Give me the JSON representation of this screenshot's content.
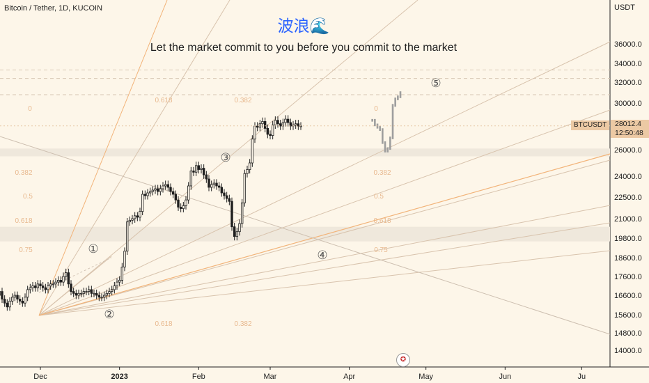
{
  "header": {
    "symbol_title": "Bitcoin / Tether, 1D, KUCOIN",
    "wave_title": "波浪🌊",
    "subtitle": "Let the market commit to you before you commit to the market"
  },
  "price_scale": {
    "currency": "USDT",
    "symbol_tag": "BTCUSDT",
    "last_price": "28012.4",
    "countdown": "12:50:48"
  },
  "colors": {
    "background": "#fdf6e9",
    "candle": "#1e1e1e",
    "projection": "#9e9e9e",
    "fib_text": "#e8b98f",
    "fan_lines": "#d8c3ad",
    "orange_line": "#f2b47a",
    "price_tag": "#ecc9a4",
    "title_blue": "#2962ff"
  },
  "chart_data": {
    "type": "candlestick",
    "symbol": "Bitcoin / Tether",
    "interval": "1D",
    "exchange": "KUCOIN",
    "y_ticks": [
      36000,
      34000,
      32000,
      30000,
      28000,
      26000,
      24000,
      22500,
      21000,
      19800,
      18600,
      17600,
      16600,
      15600,
      14800,
      14000
    ],
    "y_tick_labels": [
      "36000.0",
      "34000.0",
      "32000.0",
      "30000.0",
      "28000.0",
      "26000.0",
      "24000.0",
      "22500.0",
      "21000.0",
      "19800.0",
      "18600.0",
      "17600.0",
      "16600.0",
      "15600.0",
      "14800.0",
      "14000.0"
    ],
    "x_ticks": [
      {
        "date": "2022-12-01",
        "label": "Dec"
      },
      {
        "date": "2023-01-01",
        "label": "2023"
      },
      {
        "date": "2023-02-01",
        "label": "Feb"
      },
      {
        "date": "2023-03-01",
        "label": "Mar"
      },
      {
        "date": "2023-04-01",
        "label": "Apr"
      },
      {
        "date": "2023-05-01",
        "label": "May"
      },
      {
        "date": "2023-06-01",
        "label": "Jun"
      },
      {
        "date": "2023-07-01",
        "label": "Ju"
      }
    ],
    "x_range": [
      "2022-11-01",
      "2023-07-01"
    ],
    "last_price": 28012.4,
    "series": [
      {
        "start": "2022-11-01",
        "closes": [
          20500,
          20200,
          20300,
          19600,
          18000,
          17200,
          16900,
          17000,
          16800,
          16700,
          16600,
          16800,
          16500,
          16600,
          16800,
          16400,
          16200,
          16000,
          16300,
          16500,
          16600,
          16400,
          16300,
          16200,
          16500,
          16900,
          17000,
          17100,
          17000,
          17200,
          17100,
          17000,
          16900,
          17100,
          17200,
          17200,
          17300,
          17400,
          17300,
          17600,
          17800,
          17200,
          16800,
          16700,
          16600,
          16700,
          16700,
          16800,
          16800,
          16900,
          16700,
          16700,
          16600,
          16500,
          16500,
          16600,
          16700,
          16800,
          16900,
          17100,
          17300,
          17400,
          18100,
          19000,
          20800,
          20900,
          21000,
          21200,
          21100,
          21500,
          22700,
          22600,
          22800,
          22900,
          23000,
          23100,
          22900,
          23100,
          23300,
          23400,
          23200,
          22900,
          22700,
          22300,
          21800,
          21700,
          21900,
          22300,
          23300,
          24400,
          24300,
          24800,
          24500,
          24600,
          24100,
          23800,
          23200,
          23400,
          23500,
          23300,
          23200,
          22800,
          22600,
          22400,
          22200,
          20500,
          19900,
          20200,
          20700,
          22100,
          24200,
          24500,
          25000,
          26900,
          28000,
          27900,
          28200,
          28400,
          27800,
          27300,
          27200,
          28100,
          28500,
          28200,
          28000,
          28300,
          28600,
          28300,
          28000,
          28100,
          28200,
          28000,
          28000
        ]
      },
      {
        "name": "projection",
        "start": "2023-04-10",
        "closes": [
          28500,
          28100,
          27900,
          27700,
          26600,
          25900,
          26100,
          27000,
          29800,
          30400,
          30600,
          31000
        ]
      }
    ],
    "fib_labels": [
      "0",
      "0.382",
      "0.5",
      "0.618",
      "0.75",
      "0.618",
      "0.382",
      "0.618",
      "0.382",
      "0",
      "0.382",
      "0.5",
      "0.618",
      "0.75"
    ],
    "wave_labels": [
      "①",
      "②",
      "③",
      "④",
      "⑤"
    ],
    "dashed_levels": [
      30800,
      32400,
      33300
    ],
    "zones": [
      [
        25500,
        26100
      ],
      [
        19600,
        20500
      ]
    ]
  }
}
